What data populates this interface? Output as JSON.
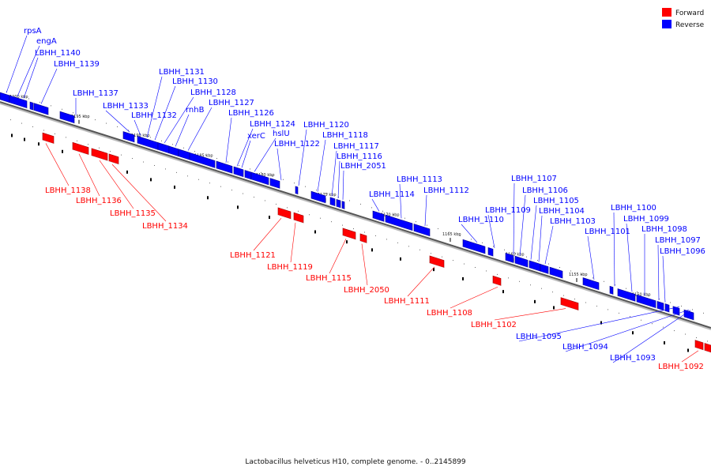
{
  "caption": "Lactobacillus helveticus H10, complete genome. - 0..2145899",
  "legend": [
    {
      "label": "Forward",
      "color": "#ff0000"
    },
    {
      "label": "Reverse",
      "color": "#0000ff"
    }
  ],
  "colors": {
    "forward": "#ff0000",
    "reverse": "#0000ff",
    "backbone": "#555555"
  },
  "ticks": [
    "1200 kbp",
    "1195 kbp",
    "1190 kbp",
    "1185 kbp",
    "1180 kbp",
    "1175 kbp",
    "1170 kbp",
    "1165 kbp",
    "1160 kbp",
    "1155 kbp",
    "1150 kbp"
  ],
  "reverse_labels": [
    "rpsA",
    "engA",
    "LBHH_1140",
    "LBHH_1139",
    "LBHH_1137",
    "LBHH_1133",
    "LBHH_1132",
    "LBHH_1131",
    "LBHH_1130",
    "LBHH_1128",
    "rnhB",
    "LBHH_1127",
    "LBHH_1126",
    "LBHH_1124",
    "xerC",
    "hslU",
    "LBHH_1122",
    "LBHH_1120",
    "LBHH_1118",
    "LBHH_1117",
    "LBHH_1116",
    "LBHH_2051",
    "LBHH_1114",
    "LBHH_1113",
    "LBHH_1112",
    "LBHH_1110",
    "LBHH_1109",
    "LBHH_1107",
    "LBHH_1106",
    "LBHH_1105",
    "LBHH_1104",
    "LBHH_1103",
    "LBHH_1101",
    "LBHH_1100",
    "LBHH_1099",
    "LBHH_1098",
    "LBHH_1097",
    "LBHH_1096",
    "LBHH_1095",
    "LBHH_1094",
    "LBHH_1093"
  ],
  "forward_labels": [
    "LBHH_1138",
    "LBHH_1136",
    "LBHH_1135",
    "LBHH_1134",
    "LBHH_1121",
    "LBHH_1119",
    "LBHH_1115",
    "LBHH_2050",
    "LBHH_1111",
    "LBHH_1108",
    "LBHH_1102",
    "LBHH_1092"
  ]
}
